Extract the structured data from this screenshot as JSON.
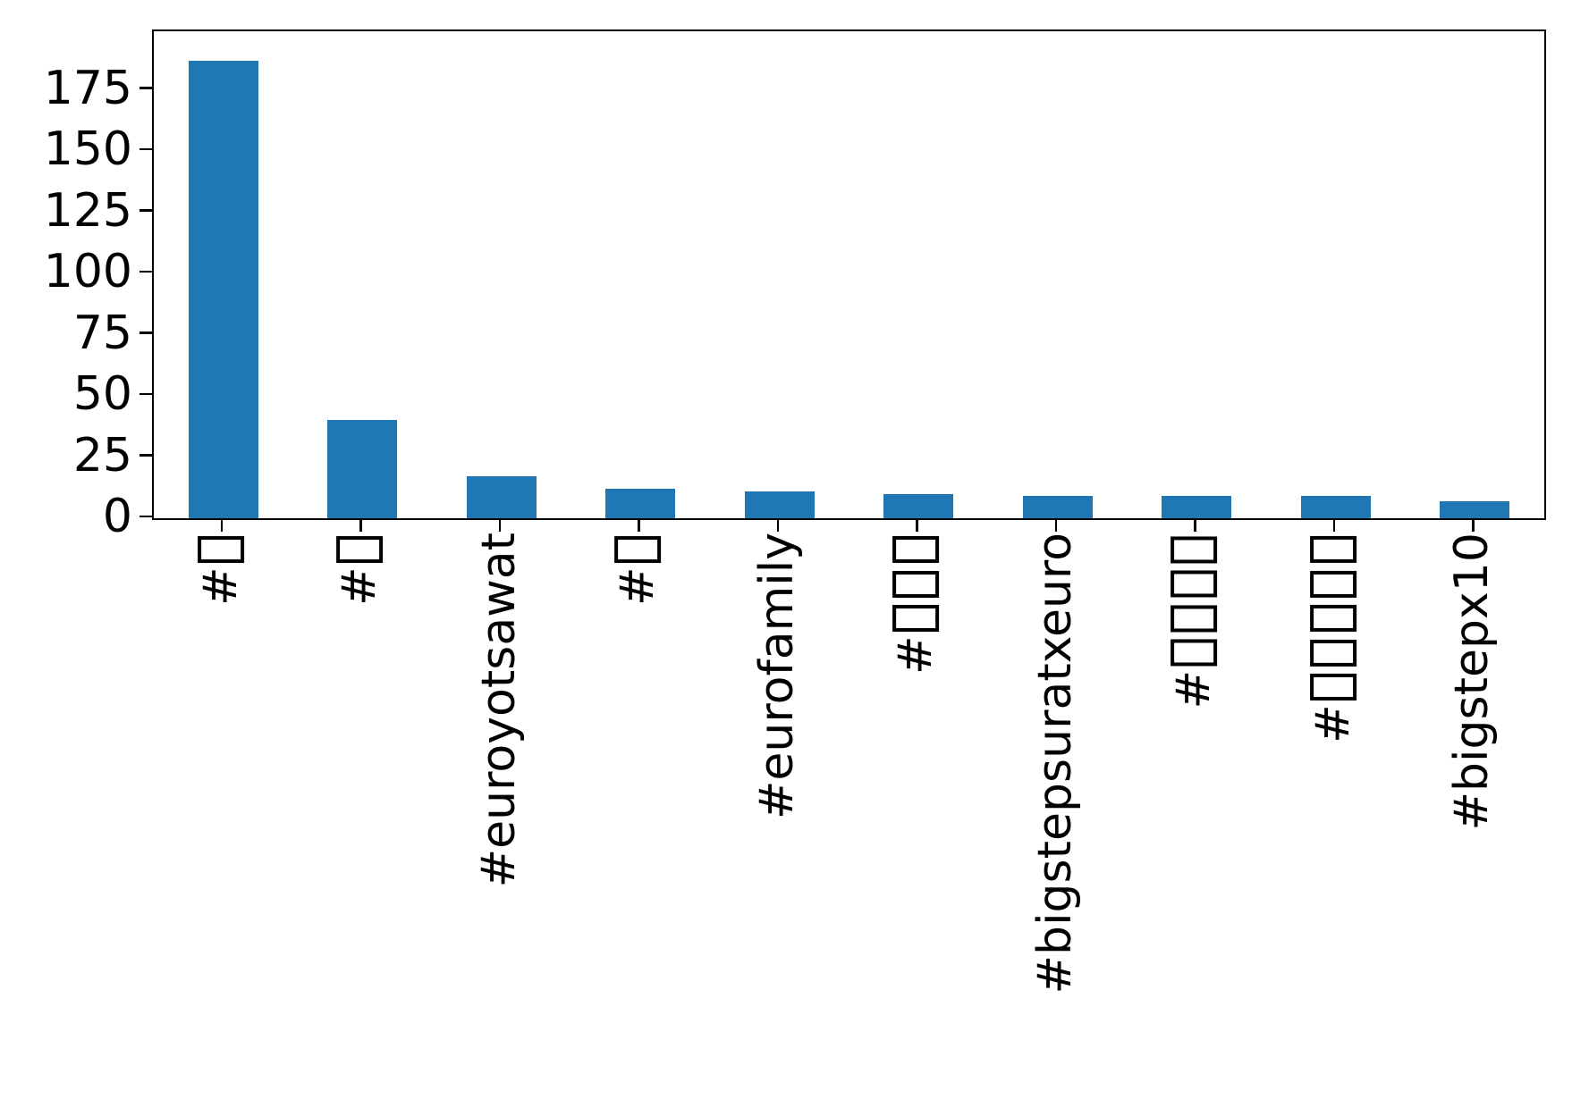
{
  "chart_data": {
    "type": "bar",
    "categories": [
      "#□",
      "#□",
      "#euroyotsawat",
      "#□",
      "#eurofamily",
      "#□□□",
      "#bigstepsuratxeuro",
      "#□□□□",
      "#□□□□□",
      "#bigstepx10"
    ],
    "values": [
      187,
      40,
      17,
      12,
      11,
      10,
      9,
      9,
      9,
      7
    ],
    "title": "",
    "xlabel": "",
    "ylabel": "",
    "ylim": [
      0,
      199
    ],
    "yticks": [
      0,
      25,
      50,
      75,
      100,
      125,
      150,
      175
    ],
    "xtick_rotation_deg": 90,
    "missing_glyph_char": "□",
    "bar_color": "#1f77b4",
    "axis_color": "#000000",
    "background_color": "#ffffff",
    "grid": false,
    "legend": false
  }
}
